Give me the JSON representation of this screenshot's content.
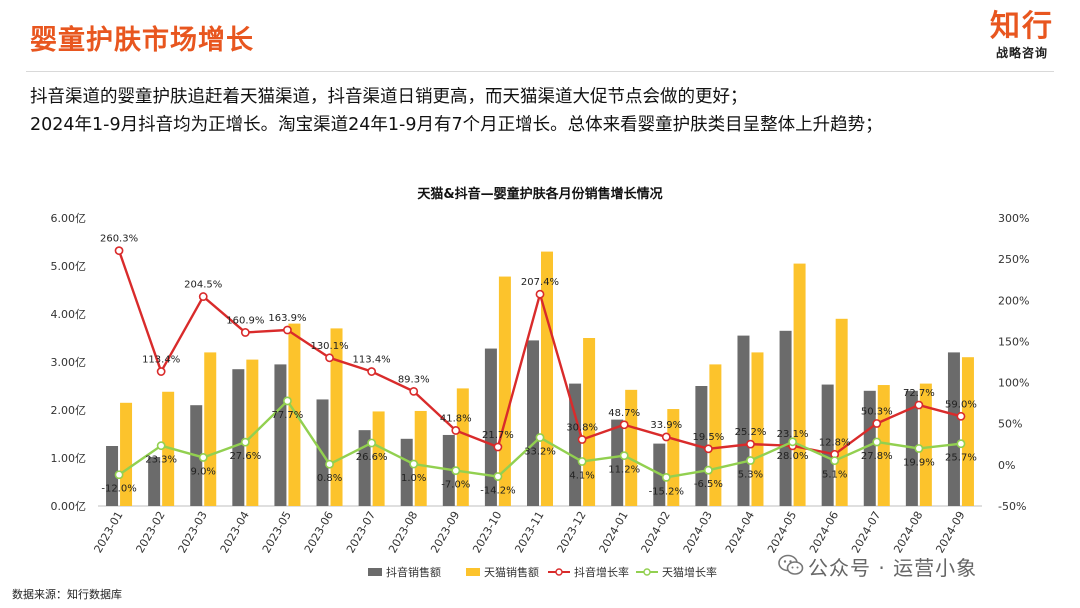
{
  "header": {
    "title": "婴童护肤市场增长",
    "logo_main": "知行",
    "logo_sub": "战略咨询"
  },
  "description": {
    "line1": "抖音渠道的婴童护肤追赶着天猫渠道，抖音渠道日销更高，而天猫渠道大促节点会做的更好；",
    "line2": "2024年1-9月抖音均为正增长。淘宝渠道24年1-9月有7个月正增长。总体来看婴童护肤类目呈整体上升趋势；"
  },
  "footer": {
    "source": "数据来源：知行数据库",
    "watermark": "公众号 · 运营小象"
  },
  "colors": {
    "accent": "#e8561f",
    "douyin_bar": "#6b6b6b",
    "tmall_bar": "#fcc32c",
    "douyin_line": "#d92b2b",
    "tmall_line": "#92d050"
  },
  "chart_data": {
    "type": "bar",
    "title": "天猫&抖音—婴童护肤各月份销售增长情况",
    "categories": [
      "2023-01",
      "2023-02",
      "2023-03",
      "2023-04",
      "2023-05",
      "2023-06",
      "2023-07",
      "2023-08",
      "2023-09",
      "2023-10",
      "2023-11",
      "2023-12",
      "2024-01",
      "2024-02",
      "2024-03",
      "2024-04",
      "2024-05",
      "2024-06",
      "2024-07",
      "2024-08",
      "2024-09"
    ],
    "y_left": {
      "ticks": [
        "0.00亿",
        "1.00亿",
        "2.00亿",
        "3.00亿",
        "4.00亿",
        "5.00亿",
        "6.00亿"
      ],
      "ylim": [
        0,
        6
      ]
    },
    "y_right": {
      "ticks": [
        "-50%",
        "0%",
        "50%",
        "100%",
        "150%",
        "200%",
        "250%",
        "300%"
      ],
      "ylim": [
        -50,
        300
      ]
    },
    "series": [
      {
        "name": "抖音销售额",
        "kind": "bar",
        "axis": "left",
        "values": [
          1.25,
          1.02,
          2.1,
          2.85,
          2.95,
          2.22,
          1.58,
          1.4,
          1.48,
          3.28,
          3.45,
          2.55,
          1.8,
          1.3,
          2.5,
          3.55,
          3.65,
          2.53,
          2.4,
          2.4,
          3.2
        ]
      },
      {
        "name": "天猫销售额",
        "kind": "bar",
        "axis": "left",
        "values": [
          2.15,
          2.38,
          3.2,
          3.05,
          3.8,
          3.7,
          1.97,
          1.98,
          2.45,
          4.78,
          5.3,
          3.5,
          2.42,
          2.02,
          2.95,
          3.2,
          5.05,
          3.9,
          2.52,
          2.55,
          3.1
        ]
      },
      {
        "name": "抖音增长率",
        "kind": "line",
        "axis": "right",
        "values": [
          260.3,
          113.4,
          204.5,
          160.9,
          163.9,
          130.1,
          113.4,
          89.3,
          41.8,
          21.7,
          207.4,
          30.8,
          48.7,
          33.9,
          19.5,
          25.2,
          23.1,
          12.8,
          50.3,
          72.7,
          59.0
        ],
        "labels": [
          "260.3%",
          "113.4%",
          "204.5%",
          "160.9%",
          "163.9%",
          "130.1%",
          "113.4%",
          "89.3%",
          "41.8%",
          "21.7%",
          "207.4%",
          "30.8%",
          "48.7%",
          "33.9%",
          "19.5%",
          "25.2%",
          "23.1%",
          "12.8%",
          "50.3%",
          "72.7%",
          "59.0%"
        ]
      },
      {
        "name": "天猫增长率",
        "kind": "line",
        "axis": "right",
        "values": [
          -12.0,
          23.3,
          9.0,
          27.6,
          77.7,
          0.8,
          26.6,
          1.0,
          -7.0,
          -14.2,
          33.2,
          4.1,
          11.2,
          -15.2,
          -6.5,
          5.3,
          28.0,
          5.1,
          27.8,
          19.9,
          25.7
        ],
        "labels": [
          "-12.0%",
          "23.3%",
          "9.0%",
          "27.6%",
          "77.7%",
          "0.8%",
          "26.6%",
          "1.0%",
          "-7.0%",
          "-14.2%",
          "33.2%",
          "4.1%",
          "11.2%",
          "-15.2%",
          "-6.5%",
          "5.3%",
          "28.0%",
          "5.1%",
          "27.8%",
          "19.9%",
          "25.7%"
        ]
      }
    ],
    "legend": [
      "抖音销售额",
      "天猫销售额",
      "抖音增长率",
      "天猫增长率"
    ],
    "legend_position": "bottom",
    "grid": false
  }
}
